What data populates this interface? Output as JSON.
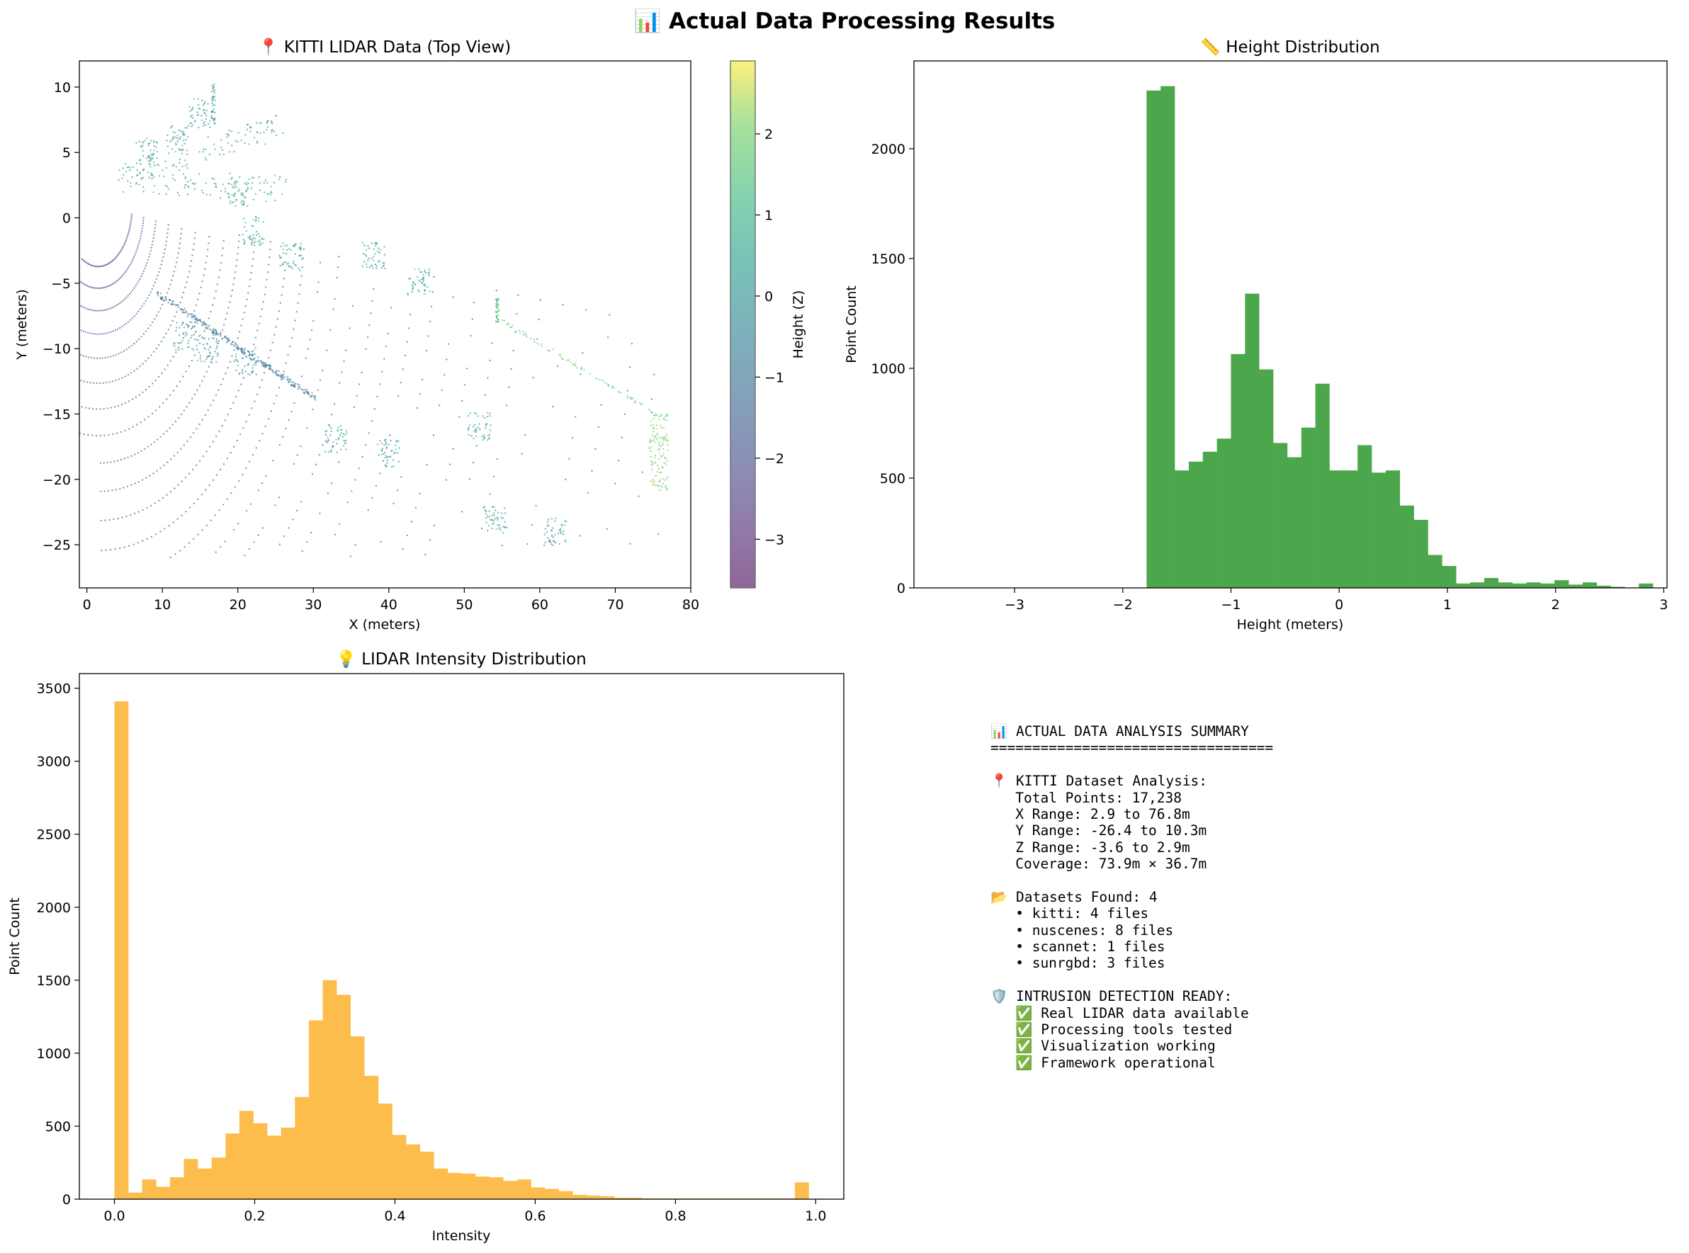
{
  "figure": {
    "title": "📊 Actual Data Processing Results"
  },
  "chart_data": [
    {
      "id": "scatter",
      "type": "scatter",
      "title": "📍 KITTI LIDAR Data (Top View)",
      "xlabel": "X (meters)",
      "ylabel": "Y (meters)",
      "xlim": [
        -1,
        80
      ],
      "ylim": [
        -28.3,
        12.0
      ],
      "xticks": [
        0,
        10,
        20,
        30,
        40,
        50,
        60,
        70,
        80
      ],
      "yticks": [
        10,
        5,
        0,
        -5,
        -10,
        -15,
        -20,
        -25
      ],
      "colorbar": {
        "label": "Height (Z)",
        "range": [
          -3.6,
          2.9
        ],
        "ticks": [
          2,
          1,
          0,
          -1,
          -2,
          -3
        ],
        "colormap": "viridis",
        "alpha": 0.6
      },
      "point_count": 17238
    },
    {
      "id": "height",
      "type": "bar",
      "title": "📏 Height Distribution",
      "xlabel": "Height (meters)",
      "ylabel": "Point Count",
      "xlim": [
        -3.93,
        3.03
      ],
      "ylim": [
        0,
        2400
      ],
      "xticks": [
        -3,
        -2,
        -1,
        0,
        1,
        2,
        3
      ],
      "yticks": [
        0,
        500,
        1000,
        1500,
        2000
      ],
      "color": "#4ca64c",
      "bin_start": -3.6,
      "bin_width": 0.13,
      "values": [
        0,
        0,
        0,
        0,
        0,
        0,
        0,
        0,
        0,
        0,
        0,
        0,
        0,
        0,
        2265,
        2285,
        535,
        575,
        620,
        680,
        1065,
        1340,
        995,
        660,
        595,
        730,
        930,
        535,
        535,
        650,
        525,
        535,
        375,
        310,
        150,
        100,
        20,
        25,
        45,
        25,
        20,
        25,
        20,
        35,
        15,
        25,
        10,
        5,
        0,
        20
      ]
    },
    {
      "id": "intensity",
      "type": "bar",
      "title": "💡 LIDAR Intensity Distribution",
      "xlabel": "Intensity",
      "ylabel": "Point Count",
      "xlim": [
        -0.05,
        1.04
      ],
      "ylim": [
        0,
        3600
      ],
      "xticks": [
        0.0,
        0.2,
        0.4,
        0.6,
        0.8,
        1.0
      ],
      "yticks": [
        0,
        500,
        1000,
        1500,
        2000,
        2500,
        3000,
        3500
      ],
      "color": "#fdbd4c",
      "bin_start": 0.0,
      "bin_width": 0.0198,
      "values": [
        3410,
        45,
        135,
        85,
        150,
        275,
        210,
        285,
        450,
        605,
        520,
        435,
        490,
        700,
        1225,
        1500,
        1400,
        1115,
        845,
        655,
        440,
        375,
        325,
        210,
        180,
        175,
        155,
        150,
        125,
        135,
        80,
        70,
        55,
        30,
        25,
        20,
        10,
        10,
        5,
        5,
        5,
        5,
        5,
        5,
        5,
        5,
        5,
        5,
        5,
        115
      ]
    }
  ],
  "summary": {
    "lines": [
      "📊 ACTUAL DATA ANALYSIS SUMMARY",
      "==================================",
      "",
      "📍 KITTI Dataset Analysis:",
      "   Total Points: 17,238",
      "   X Range: 2.9 to 76.8m",
      "   Y Range: -26.4 to 10.3m",
      "   Z Range: -3.6 to 2.9m",
      "   Coverage: 73.9m × 36.7m",
      "",
      "📂 Datasets Found: 4",
      "   • kitti: 4 files",
      "   • nuscenes: 8 files",
      "   • scannet: 1 files",
      "   • sunrgbd: 3 files",
      "",
      "🛡️ INTRUSION DETECTION READY:",
      "   ✅ Real LIDAR data available",
      "   ✅ Processing tools tested",
      "   ✅ Visualization working",
      "   ✅ Framework operational"
    ]
  }
}
